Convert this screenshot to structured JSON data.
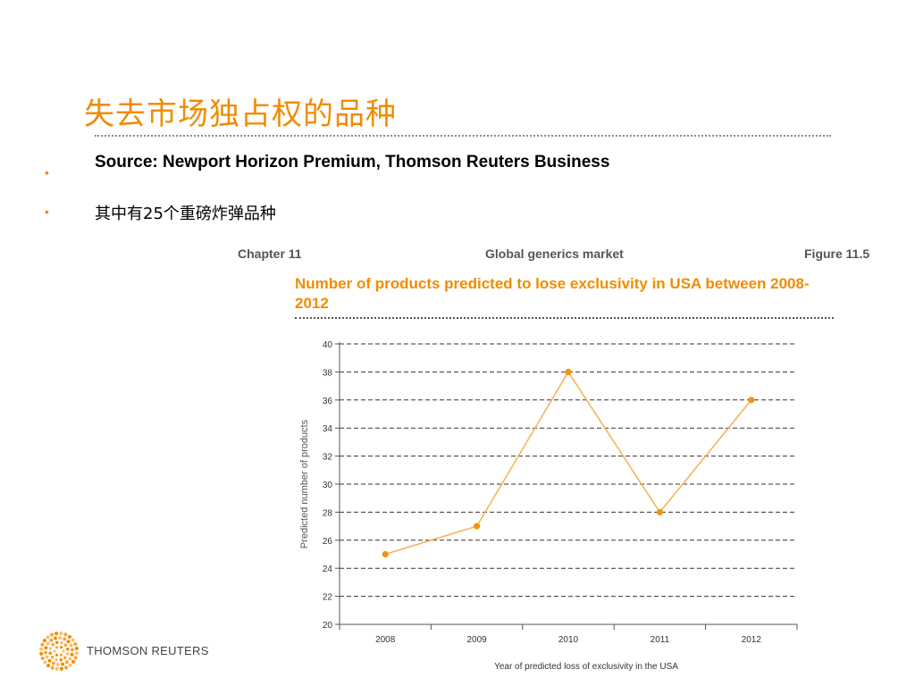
{
  "slide": {
    "title": "失去市场独占权的品种",
    "bullets": [
      "Source: Newport Horizon Premium, Thomson Reuters Business",
      "其中有25个重磅炸弹品种"
    ],
    "bullet_glyph": "•"
  },
  "figure": {
    "header_left": "Chapter 11",
    "header_mid": "Global generics market",
    "header_right": "Figure 11.5"
  },
  "chart_data": {
    "type": "line",
    "title": "Number of products predicted to lose exclusivity in USA between 2008-2012",
    "xlabel": "Year of predicted loss of exclusivity in the USA",
    "ylabel": "Predicted number of products",
    "categories": [
      "2008",
      "2009",
      "2010",
      "2011",
      "2012"
    ],
    "series": [
      {
        "values": [
          25,
          27,
          38,
          28,
          36
        ]
      }
    ],
    "ylim": [
      20,
      40
    ],
    "yticks": [
      20,
      22,
      24,
      26,
      28,
      30,
      32,
      34,
      36,
      38,
      40
    ],
    "grid": "horizontal dashed",
    "legend": "none",
    "colors": {
      "line": "#f5b55c",
      "marker": "#f0960f",
      "grid": "#333333"
    }
  },
  "footer": {
    "logo_text": "THOMSON REUTERS",
    "logo_color": "#f08c00"
  }
}
